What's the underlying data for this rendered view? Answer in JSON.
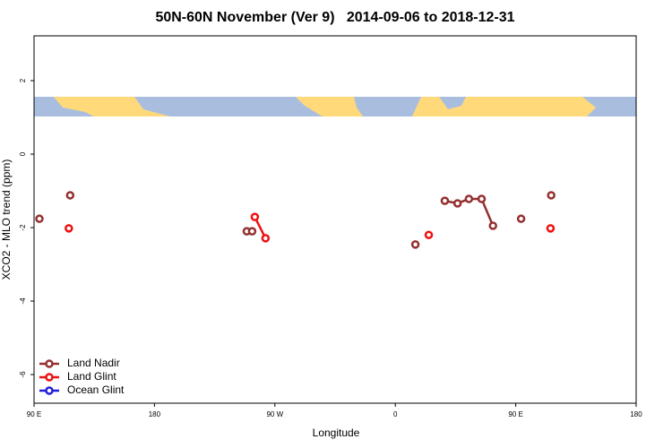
{
  "chart_data": {
    "type": "line",
    "title": "50N-60N November (Ver 9)   2014-09-06 to 2018-12-31",
    "x_label": "Longitude",
    "y_label": "XCO2 - MLO trend (ppm)",
    "xlim": [
      90,
      540
    ],
    "ylim": [
      -6.78,
      3.22
    ],
    "xticks": [
      {
        "value": 90,
        "label": "90 E"
      },
      180,
      {
        "value": 270,
        "label": "90 W"
      },
      {
        "value": 360,
        "label": "0"
      },
      {
        "value": 450,
        "label": "90 E"
      },
      {
        "value": 540,
        "label": "180"
      }
    ],
    "yticks": [
      -6,
      -4,
      -2,
      0,
      2
    ],
    "legend": "bottom-left",
    "series": [
      {
        "name": "Land Nadir",
        "color": "#943030",
        "x": [
          94,
          null,
          117,
          null,
          249,
          253,
          null,
          375,
          null,
          397,
          406.5,
          415,
          424.5,
          433,
          null,
          454,
          null,
          476.5
        ],
        "values": [
          -1.76,
          null,
          -1.12,
          null,
          -2.1,
          -2.1,
          null,
          -2.46,
          null,
          -1.27,
          -1.34,
          -1.22,
          -1.22,
          -1.95,
          null,
          -1.76,
          null,
          -1.12
        ]
      },
      {
        "name": "Land Glint",
        "color": "#ee1111",
        "x": [
          116,
          null,
          255,
          263,
          null,
          385,
          null,
          476
        ],
        "values": [
          -2.02,
          null,
          -1.71,
          -2.29,
          null,
          -2.2,
          null,
          -2.02
        ]
      },
      {
        "name": "Ocean Glint",
        "color": "#1f1fdd",
        "x": [],
        "values": []
      }
    ]
  }
}
